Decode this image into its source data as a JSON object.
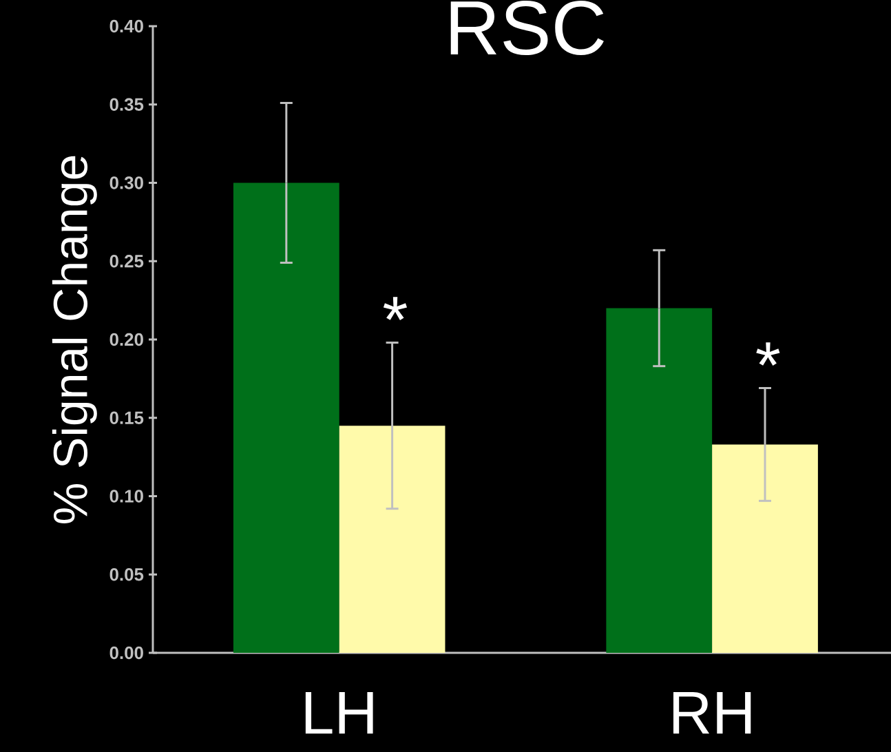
{
  "chart_data": {
    "type": "bar",
    "title": "RSC",
    "ylabel": "% Signal Change",
    "categories": [
      "LH",
      "RH"
    ],
    "series": [
      {
        "color": "#00701a",
        "values": [
          0.3,
          0.22
        ],
        "errors": [
          0.051,
          0.037
        ]
      },
      {
        "color": "#fffaaa",
        "values": [
          0.145,
          0.133
        ],
        "errors": [
          0.053,
          0.036
        ]
      }
    ],
    "ylim": [
      0,
      0.4
    ],
    "yticks": [
      {
        "value": 0,
        "label": "0.00"
      },
      {
        "value": 0.05,
        "label": "0.05"
      },
      {
        "value": 0.1,
        "label": "0.10"
      },
      {
        "value": 0.15,
        "label": "0.15"
      },
      {
        "value": 0.2,
        "label": "0.20"
      },
      {
        "value": 0.25,
        "label": "0.25"
      },
      {
        "value": 0.3,
        "label": "0.30"
      },
      {
        "value": 0.35,
        "label": "0.35"
      },
      {
        "value": 0.4,
        "label": "0.40"
      }
    ],
    "annotations": [
      "*",
      "*"
    ],
    "grid": false
  }
}
